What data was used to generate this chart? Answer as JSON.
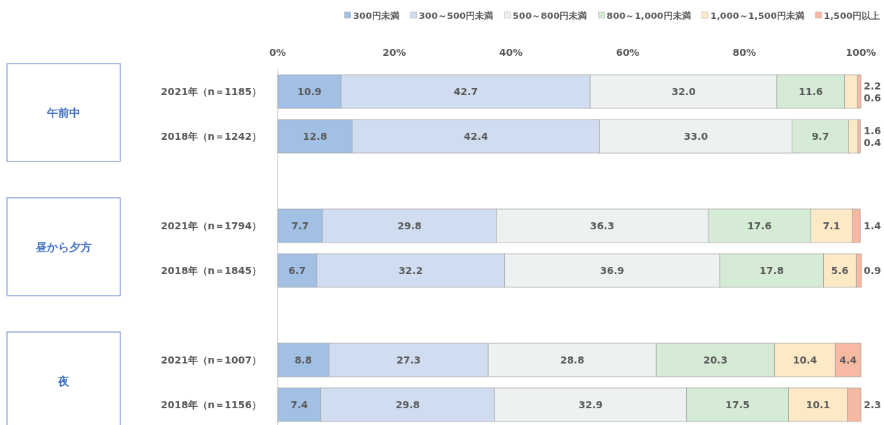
{
  "chart_data": {
    "type": "bar",
    "orientation": "horizontal",
    "stacked": true,
    "legend": "top",
    "categories": [
      "2021年（n＝1185）",
      "2018年（n＝1242）",
      null,
      "2021年（n＝1794）",
      "2018年（n＝1845）",
      null,
      "2021年（n＝1007）",
      "2018年（n＝1156）"
    ],
    "xlim": [
      0,
      100
    ],
    "xticks": [
      {
        "value": 0,
        "label": "0%"
      },
      {
        "value": 20,
        "label": "20%"
      },
      {
        "value": 40,
        "label": "40%"
      },
      {
        "value": 60,
        "label": "60%"
      },
      {
        "value": 80,
        "label": "80%"
      },
      {
        "value": 100,
        "label": "100%"
      }
    ],
    "annotations": [
      "午前中",
      "昼から夕方",
      "夜"
    ],
    "series": [
      {
        "name": "300円未満",
        "color": "#a2c0e4",
        "values": [
          10.9,
          12.8,
          null,
          7.7,
          6.7,
          null,
          8.8,
          7.4
        ],
        "value_labels": [
          "10.9",
          "12.8",
          null,
          "7.7",
          "6.7",
          null,
          "8.8",
          "7.4"
        ]
      },
      {
        "name": "300～500円未満",
        "color": "#d0ddf0",
        "values": [
          42.7,
          42.4,
          null,
          29.8,
          32.2,
          null,
          27.3,
          29.8
        ],
        "value_labels": [
          "42.7",
          "42.4",
          null,
          "29.8",
          "32.2",
          null,
          "27.3",
          "29.8"
        ]
      },
      {
        "name": "500～800円未満",
        "color": "#edf1f2",
        "values": [
          32.0,
          33.0,
          null,
          36.3,
          36.9,
          null,
          28.8,
          32.9
        ],
        "value_labels": [
          "32.0",
          "33.0",
          null,
          "36.3",
          "36.9",
          null,
          "28.8",
          "32.9"
        ]
      },
      {
        "name": "800～1,000円未満",
        "color": "#d5ebd6",
        "values": [
          11.6,
          9.7,
          null,
          17.6,
          17.8,
          null,
          20.3,
          17.5
        ],
        "value_labels": [
          "11.6",
          "9.7",
          null,
          "17.6",
          "17.8",
          null,
          "20.3",
          "17.5"
        ]
      },
      {
        "name": "1,000～1,500円未満",
        "color": "#fde9c6",
        "values": [
          2.2,
          1.6,
          null,
          7.1,
          5.6,
          null,
          10.4,
          10.1
        ],
        "value_labels": [
          "2.2",
          "1.6",
          null,
          "7.1",
          "5.6",
          null,
          "10.4",
          "10.1"
        ]
      },
      {
        "name": "1,500円以上",
        "color": "#f7b9a2",
        "values": [
          0.6,
          0.4,
          null,
          1.4,
          0.9,
          null,
          4.4,
          2.3
        ],
        "value_labels": [
          "0.6",
          "0.4",
          null,
          "1.4",
          "0.9",
          null,
          "4.4",
          "2.3"
        ]
      }
    ]
  }
}
